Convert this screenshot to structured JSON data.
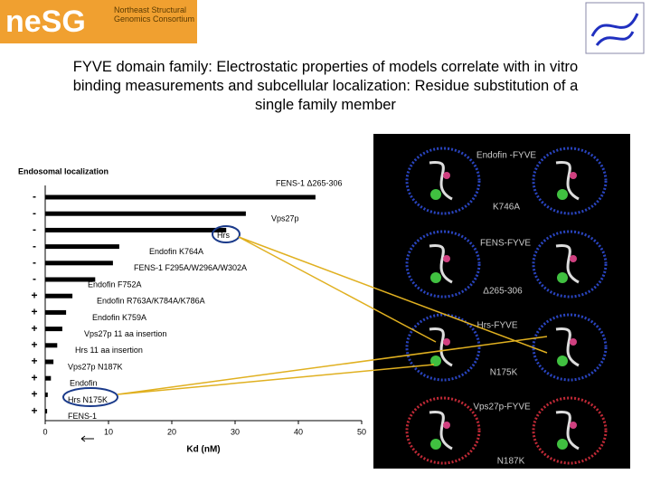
{
  "header": {
    "logo": "neSG",
    "consortium": "Northeast Structural Genomics Consortium"
  },
  "slide": {
    "title": "FYVE domain family: Electrostatic properties of models correlate with in vitro binding measurements and subcellular localization: Residue substitution of a single family member"
  },
  "panel": {
    "labels": [
      "Endofin -FYVE",
      "K746A",
      "FENS-FYVE",
      "Δ265-306",
      "Hrs-FYVE",
      "N175K",
      "Vps27p-FYVE",
      "N187K"
    ]
  },
  "chart_data": {
    "type": "barh",
    "x_label": "Kd (nM)",
    "localization_title": "Endosomal localization",
    "categories": [
      "FENS-1 Δ265-306",
      "Vps27p",
      "Hrs",
      "Endofin K764A",
      "FENS-1 F295A/W296A/W302A",
      "Endofin F752A",
      "Endofin R763A/K784A/K786A",
      "Endofin K759A",
      "Vps27p 11 aa insertion",
      "Hrs 11 aa insertion",
      "Vps27p N187K",
      "Endofin",
      "Hrs N175K",
      "FENS-1"
    ],
    "localization": [
      "-",
      "-",
      "-",
      "-",
      "-",
      "-",
      "+",
      "+",
      "+",
      "+",
      "+",
      "+",
      "+",
      "+"
    ],
    "values": [
      42.7,
      31.7,
      28.6,
      11.7,
      10.7,
      7.9,
      4.3,
      3.3,
      2.7,
      1.9,
      1.3,
      0.9,
      0.4,
      0.3
    ],
    "color": "#000000",
    "xlim": [
      0,
      50
    ],
    "xticks": [
      0,
      10,
      20,
      30,
      40,
      50
    ]
  }
}
